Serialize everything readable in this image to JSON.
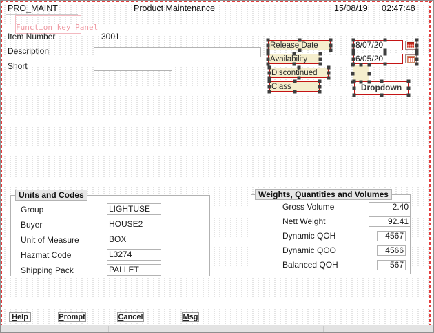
{
  "header": {
    "program_id": "PRO_MAINT",
    "title": "Product Maintenance",
    "date": "15/08/19",
    "time": "02:47:48"
  },
  "designer": {
    "function_key_panel_label": "Function key Panel"
  },
  "item_fields": {
    "item_number": {
      "label": "Item Number",
      "value": "3001"
    },
    "description": {
      "label": "Description",
      "value": ""
    },
    "short": {
      "label": "Short",
      "value": ""
    }
  },
  "selected_controls": {
    "labels": [
      {
        "text": "Release Date"
      },
      {
        "text": "Availability"
      },
      {
        "text": "Discontinued"
      },
      {
        "text": "Class"
      }
    ],
    "release_date_value": "8/07/20",
    "availability_value": "6/05/20",
    "icons": {
      "release_date": "calendar-icon",
      "availability": "calendar-grid-icon"
    },
    "checkbox_value": "",
    "dropdown_label": "Dropdown"
  },
  "units_group": {
    "title": "Units and Codes",
    "fields": [
      {
        "label": "Group",
        "value": "LIGHTUSE"
      },
      {
        "label": "Buyer",
        "value": "HOUSE2"
      },
      {
        "label": "Unit of Measure",
        "value": "BOX"
      },
      {
        "label": "Hazmat Code",
        "value": "L3274"
      },
      {
        "label": "Shipping Pack",
        "value": "PALLET"
      }
    ]
  },
  "weights_group": {
    "title": "Weights, Quantities and Volumes",
    "fields": [
      {
        "label": "Gross Volume",
        "value": "2.40"
      },
      {
        "label": "Nett Weight",
        "value": "92.41"
      },
      {
        "label": "Dynamic QOH",
        "value": "4567"
      },
      {
        "label": "Dynamic QOO",
        "value": "4566"
      },
      {
        "label": "Balanced QOH",
        "value": "567"
      }
    ]
  },
  "function_buttons": [
    {
      "label": "Help",
      "mnemonic": "H",
      "rest": "elp"
    },
    {
      "label": "Prompt",
      "mnemonic": "P",
      "rest": "rompt"
    },
    {
      "label": "Cancel",
      "mnemonic": "C",
      "rest": "ancel"
    },
    {
      "label": "Msg",
      "mnemonic": "M",
      "rest": "sg"
    }
  ],
  "colors": {
    "selection_marquee_red": "#e33d3d",
    "control_border_red": "#c41414",
    "label_fill_tan": "#f5eecd",
    "handle_gray": "#3e3e3e",
    "grid_dot_gray": "#c7c7c7"
  }
}
